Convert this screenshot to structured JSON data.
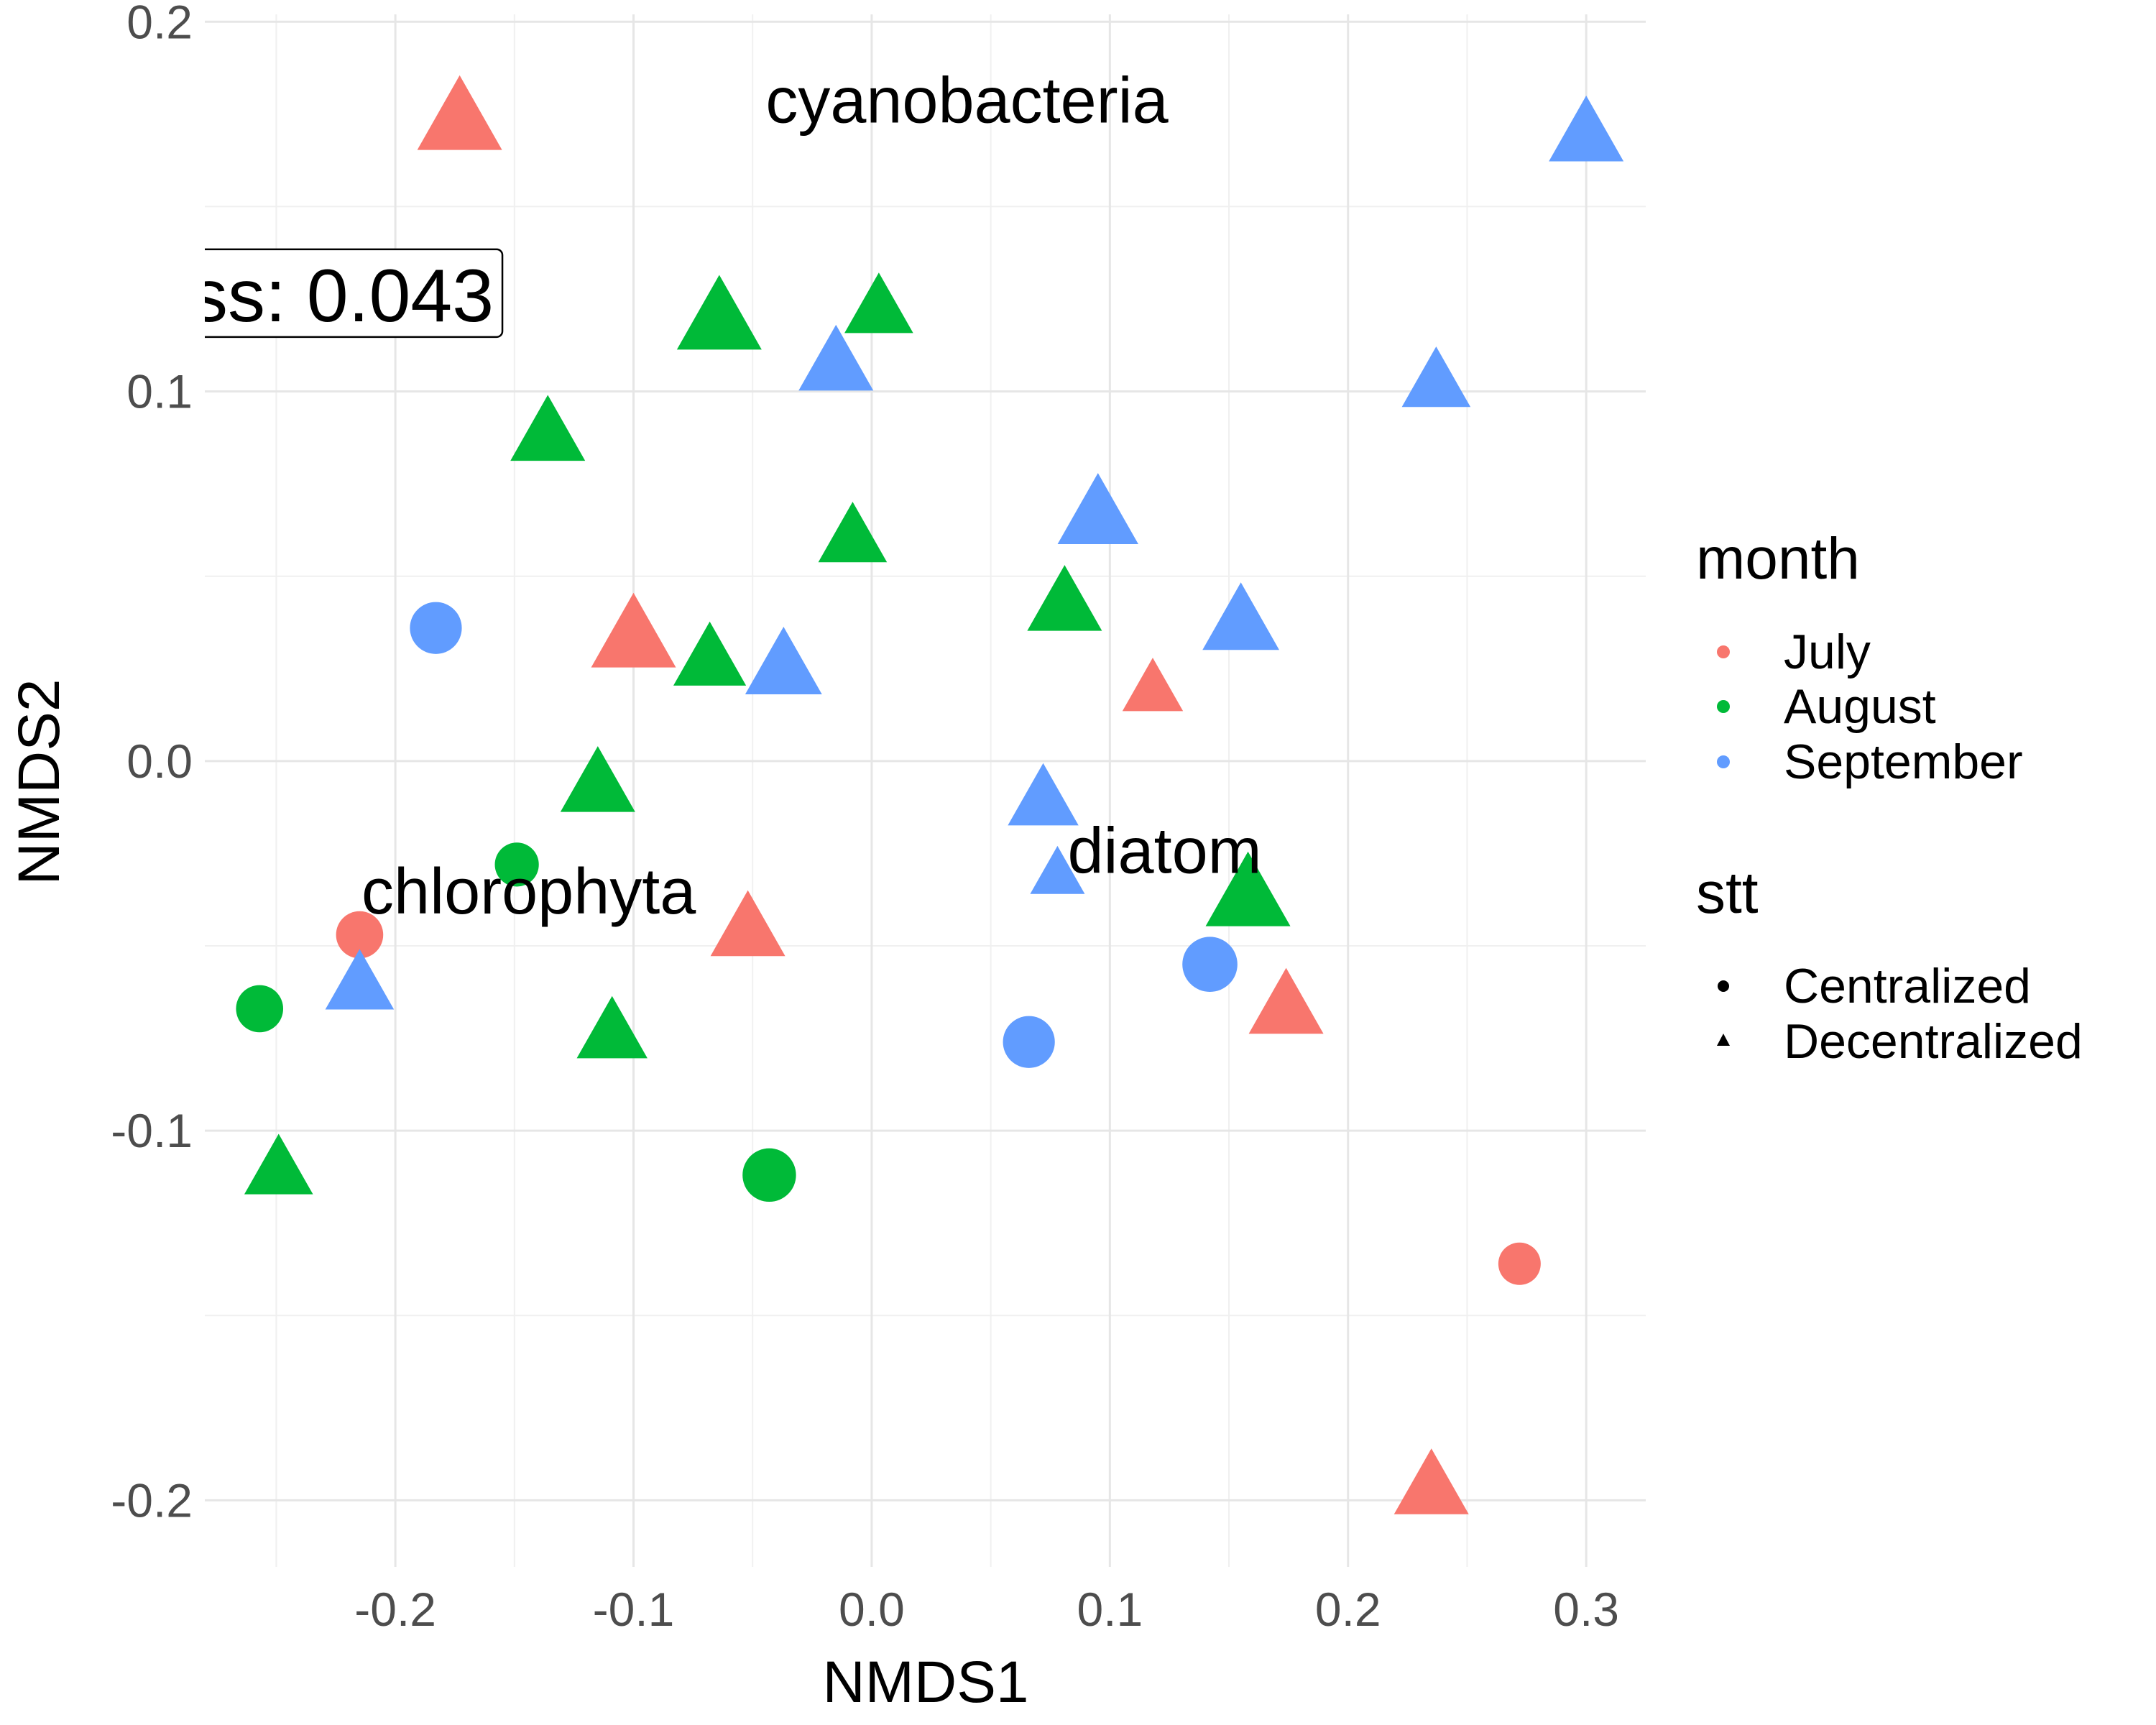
{
  "chart_data": {
    "type": "scatter",
    "xlabel": "NMDS1",
    "ylabel": "NMDS2",
    "xlim": [
      -0.28,
      0.325
    ],
    "ylim": [
      -0.218,
      0.202
    ],
    "x_ticks": [
      {
        "value": -0.2,
        "label": "-0.2"
      },
      {
        "value": -0.1,
        "label": "-0.1"
      },
      {
        "value": 0.0,
        "label": "0.0"
      },
      {
        "value": 0.1,
        "label": "0.1"
      },
      {
        "value": 0.2,
        "label": "0.2"
      },
      {
        "value": 0.3,
        "label": "0.3"
      }
    ],
    "y_ticks": [
      {
        "value": -0.2,
        "label": "-0.2"
      },
      {
        "value": -0.1,
        "label": "-0.1"
      },
      {
        "value": 0.0,
        "label": "0.0"
      },
      {
        "value": 0.1,
        "label": "0.1"
      },
      {
        "value": 0.2,
        "label": "0.2"
      }
    ],
    "grid": true,
    "colors": {
      "July": "#F8766D",
      "August": "#00BA38",
      "September": "#619CFF"
    },
    "legend": {
      "placement": "right",
      "month_title": "month",
      "month_entries": [
        "July",
        "August",
        "September"
      ],
      "stt_title": "stt",
      "stt_entries": [
        "Centralized",
        "Decentralized"
      ]
    },
    "annotations": [
      {
        "text": "cyanobacteria",
        "x": 0.04,
        "y": 0.179
      },
      {
        "text": "diatom",
        "x": 0.123,
        "y": -0.024
      },
      {
        "text": "chlorophyta",
        "x": -0.144,
        "y": -0.035
      }
    ],
    "stress_label": {
      "text": "ss:  0.043",
      "x": -0.26,
      "y": 0.126
    },
    "points": [
      {
        "x": -0.173,
        "y": 0.173,
        "month": "July",
        "stt": "Decentralized",
        "size": 3
      },
      {
        "x": -0.1,
        "y": 0.033,
        "month": "July",
        "stt": "Decentralized",
        "size": 3
      },
      {
        "x": -0.052,
        "y": -0.046,
        "month": "July",
        "stt": "Decentralized",
        "size": 2.5
      },
      {
        "x": 0.118,
        "y": 0.019,
        "month": "July",
        "stt": "Decentralized",
        "size": 1.8
      },
      {
        "x": 0.174,
        "y": -0.067,
        "month": "July",
        "stt": "Decentralized",
        "size": 2.5
      },
      {
        "x": 0.235,
        "y": -0.197,
        "month": "July",
        "stt": "Decentralized",
        "size": 2.5
      },
      {
        "x": -0.215,
        "y": -0.047,
        "month": "July",
        "stt": "Centralized",
        "size": 1.8
      },
      {
        "x": 0.272,
        "y": -0.136,
        "month": "July",
        "stt": "Centralized",
        "size": 1.5
      },
      {
        "x": -0.064,
        "y": 0.119,
        "month": "August",
        "stt": "Decentralized",
        "size": 3
      },
      {
        "x": 0.003,
        "y": 0.122,
        "month": "August",
        "stt": "Decentralized",
        "size": 2.2
      },
      {
        "x": -0.136,
        "y": 0.088,
        "month": "August",
        "stt": "Decentralized",
        "size": 2.5
      },
      {
        "x": -0.008,
        "y": 0.06,
        "month": "August",
        "stt": "Decentralized",
        "size": 2.2
      },
      {
        "x": -0.068,
        "y": 0.027,
        "month": "August",
        "stt": "Decentralized",
        "size": 2.4
      },
      {
        "x": 0.081,
        "y": 0.042,
        "month": "August",
        "stt": "Decentralized",
        "size": 2.5
      },
      {
        "x": -0.115,
        "y": -0.007,
        "month": "August",
        "stt": "Decentralized",
        "size": 2.5
      },
      {
        "x": 0.158,
        "y": -0.037,
        "month": "August",
        "stt": "Decentralized",
        "size": 3
      },
      {
        "x": -0.109,
        "y": -0.074,
        "month": "August",
        "stt": "Decentralized",
        "size": 2.3
      },
      {
        "x": -0.249,
        "y": -0.111,
        "month": "August",
        "stt": "Decentralized",
        "size": 2.2
      },
      {
        "x": -0.149,
        "y": -0.028,
        "month": "August",
        "stt": "Centralized",
        "size": 1.6
      },
      {
        "x": -0.257,
        "y": -0.067,
        "month": "August",
        "stt": "Centralized",
        "size": 1.8
      },
      {
        "x": -0.043,
        "y": -0.112,
        "month": "August",
        "stt": "Centralized",
        "size": 2.2
      },
      {
        "x": 0.3,
        "y": 0.169,
        "month": "September",
        "stt": "Decentralized",
        "size": 2.5
      },
      {
        "x": -0.015,
        "y": 0.107,
        "month": "September",
        "stt": "Decentralized",
        "size": 2.5
      },
      {
        "x": 0.237,
        "y": 0.102,
        "month": "September",
        "stt": "Decentralized",
        "size": 2.2
      },
      {
        "x": 0.095,
        "y": 0.066,
        "month": "September",
        "stt": "Decentralized",
        "size": 2.8
      },
      {
        "x": 0.155,
        "y": 0.037,
        "month": "September",
        "stt": "Decentralized",
        "size": 2.6
      },
      {
        "x": -0.037,
        "y": 0.025,
        "month": "September",
        "stt": "Decentralized",
        "size": 2.6
      },
      {
        "x": 0.072,
        "y": -0.011,
        "month": "September",
        "stt": "Decentralized",
        "size": 2.3
      },
      {
        "x": 0.078,
        "y": -0.031,
        "month": "September",
        "stt": "Decentralized",
        "size": 1.5
      },
      {
        "x": -0.215,
        "y": -0.061,
        "month": "September",
        "stt": "Decentralized",
        "size": 2.2
      },
      {
        "x": -0.183,
        "y": 0.036,
        "month": "September",
        "stt": "Centralized",
        "size": 2.1
      },
      {
        "x": 0.142,
        "y": -0.055,
        "month": "September",
        "stt": "Centralized",
        "size": 2.3
      },
      {
        "x": 0.066,
        "y": -0.076,
        "month": "September",
        "stt": "Centralized",
        "size": 2.1
      }
    ]
  }
}
